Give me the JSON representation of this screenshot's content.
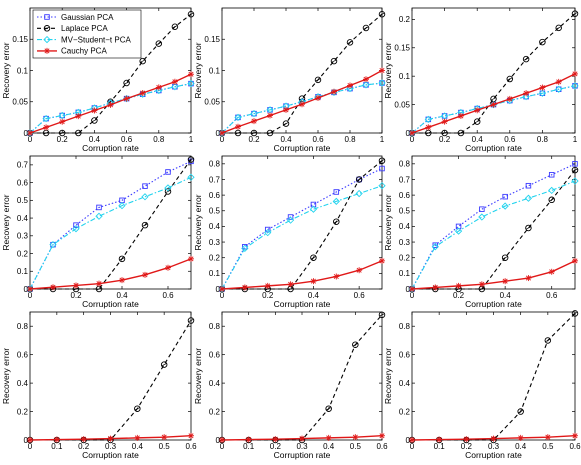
{
  "colors": {
    "gaussian": "#3a3aff",
    "laplace": "#000000",
    "student": "#22d3ee",
    "cauchy": "#e01818"
  },
  "legend": {
    "entries": [
      "Gaussian PCA",
      "Laplace PCA",
      "MV−Student−t PCA",
      "Cauchy PCA"
    ],
    "placement": "top-left of first panel"
  },
  "chart_data": [
    {
      "type": "line",
      "row": 0,
      "col": 0,
      "xlabel": "Corruption rate",
      "ylabel": "Recovery error",
      "xlim": [
        0,
        1
      ],
      "ylim": [
        0,
        0.2
      ],
      "xticks": [
        "0",
        "0.2",
        "0.4",
        "0.6",
        "0.8",
        "1"
      ],
      "yticks": [
        "0",
        "0.05",
        "0.1",
        "0.15"
      ],
      "x": [
        0,
        0.1,
        0.2,
        0.3,
        0.4,
        0.5,
        0.6,
        0.7,
        0.8,
        0.9,
        1.0
      ],
      "series": [
        {
          "name": "Gaussian PCA",
          "values": [
            0,
            0.023,
            0.028,
            0.033,
            0.04,
            0.048,
            0.055,
            0.062,
            0.068,
            0.074,
            0.079
          ]
        },
        {
          "name": "Laplace PCA",
          "values": [
            0,
            0,
            0,
            0,
            0.02,
            0.05,
            0.08,
            0.115,
            0.143,
            0.17,
            0.19
          ]
        },
        {
          "name": "MV−Student−t PCA",
          "values": [
            0,
            0.023,
            0.028,
            0.033,
            0.04,
            0.048,
            0.055,
            0.062,
            0.068,
            0.074,
            0.079
          ]
        },
        {
          "name": "Cauchy PCA",
          "values": [
            0,
            0.009,
            0.018,
            0.027,
            0.036,
            0.045,
            0.055,
            0.064,
            0.073,
            0.082,
            0.094
          ]
        }
      ]
    },
    {
      "type": "line",
      "row": 0,
      "col": 1,
      "xlabel": "Corruption rate",
      "ylabel": "Recovery error",
      "xlim": [
        0,
        1
      ],
      "ylim": [
        0,
        0.2
      ],
      "xticks": [
        "0",
        "0.2",
        "0.4",
        "0.6",
        "0.8",
        "1"
      ],
      "yticks": [
        "0",
        "0.05",
        "0.1",
        "0.15"
      ],
      "x": [
        0,
        0.1,
        0.2,
        0.3,
        0.4,
        0.5,
        0.6,
        0.7,
        0.8,
        0.9,
        1.0
      ],
      "series": [
        {
          "name": "Gaussian PCA",
          "values": [
            0,
            0.025,
            0.031,
            0.037,
            0.043,
            0.05,
            0.058,
            0.065,
            0.071,
            0.077,
            0.08
          ]
        },
        {
          "name": "Laplace PCA",
          "values": [
            0,
            0,
            0,
            0,
            0.015,
            0.055,
            0.085,
            0.115,
            0.145,
            0.168,
            0.19
          ]
        },
        {
          "name": "MV−Student−t PCA",
          "values": [
            0,
            0.025,
            0.031,
            0.037,
            0.043,
            0.05,
            0.058,
            0.065,
            0.071,
            0.077,
            0.08
          ]
        },
        {
          "name": "Cauchy PCA",
          "values": [
            0,
            0.01,
            0.019,
            0.028,
            0.037,
            0.046,
            0.056,
            0.066,
            0.076,
            0.086,
            0.1
          ]
        }
      ]
    },
    {
      "type": "line",
      "row": 0,
      "col": 2,
      "xlabel": "Corruption rate",
      "ylabel": "Recovery error",
      "xlim": [
        0,
        1
      ],
      "ylim": [
        0,
        0.22
      ],
      "xticks": [
        "0",
        "0.2",
        "0.4",
        "0.6",
        "0.8",
        "1"
      ],
      "yticks": [
        "0",
        "0.05",
        "0.1",
        "0.15",
        "0.2"
      ],
      "x": [
        0,
        0.1,
        0.2,
        0.3,
        0.4,
        0.5,
        0.6,
        0.7,
        0.8,
        0.9,
        1.0
      ],
      "series": [
        {
          "name": "Gaussian PCA",
          "values": [
            0,
            0.024,
            0.03,
            0.036,
            0.043,
            0.05,
            0.057,
            0.064,
            0.07,
            0.077,
            0.083
          ]
        },
        {
          "name": "Laplace PCA",
          "values": [
            0,
            0,
            0,
            0,
            0.02,
            0.06,
            0.095,
            0.13,
            0.16,
            0.185,
            0.21
          ]
        },
        {
          "name": "MV−Student−t PCA",
          "values": [
            0,
            0.024,
            0.03,
            0.036,
            0.043,
            0.05,
            0.057,
            0.064,
            0.07,
            0.077,
            0.083
          ]
        },
        {
          "name": "Cauchy PCA",
          "values": [
            0,
            0.01,
            0.02,
            0.03,
            0.04,
            0.05,
            0.06,
            0.07,
            0.08,
            0.09,
            0.104
          ]
        }
      ]
    },
    {
      "type": "line",
      "row": 1,
      "col": 0,
      "xlabel": "Corruption rate",
      "ylabel": "Recovery error",
      "xlim": [
        0,
        0.7
      ],
      "ylim": [
        0,
        0.75
      ],
      "xticks": [
        "0",
        "0.2",
        "0.4",
        "0.6"
      ],
      "yticks": [
        "0",
        "0.1",
        "0.2",
        "0.3",
        "0.4",
        "0.5",
        "0.6",
        "0.7"
      ],
      "x": [
        0,
        0.1,
        0.2,
        0.3,
        0.4,
        0.5,
        0.6,
        0.7
      ],
      "series": [
        {
          "name": "Gaussian PCA",
          "values": [
            0,
            0.25,
            0.36,
            0.46,
            0.5,
            0.58,
            0.66,
            0.72
          ]
        },
        {
          "name": "Laplace PCA",
          "values": [
            0,
            0,
            0,
            0,
            0.17,
            0.36,
            0.55,
            0.73
          ]
        },
        {
          "name": "MV−Student−t PCA",
          "values": [
            0,
            0.25,
            0.34,
            0.41,
            0.47,
            0.52,
            0.57,
            0.63
          ]
        },
        {
          "name": "Cauchy PCA",
          "values": [
            0,
            0.01,
            0.02,
            0.03,
            0.05,
            0.08,
            0.12,
            0.17
          ]
        }
      ]
    },
    {
      "type": "line",
      "row": 1,
      "col": 1,
      "xlabel": "Corruption rate",
      "ylabel": "Recovery error",
      "xlim": [
        0,
        0.7
      ],
      "ylim": [
        0,
        0.85
      ],
      "xticks": [
        "0",
        "0.2",
        "0.4",
        "0.6"
      ],
      "yticks": [
        "0",
        "0.1",
        "0.2",
        "0.3",
        "0.4",
        "0.5",
        "0.6",
        "0.7",
        "0.8"
      ],
      "x": [
        0,
        0.1,
        0.2,
        0.3,
        0.4,
        0.5,
        0.6,
        0.7
      ],
      "series": [
        {
          "name": "Gaussian PCA",
          "values": [
            0,
            0.27,
            0.38,
            0.46,
            0.54,
            0.62,
            0.7,
            0.77
          ]
        },
        {
          "name": "Laplace PCA",
          "values": [
            0,
            0,
            0,
            0,
            0.2,
            0.43,
            0.7,
            0.82
          ]
        },
        {
          "name": "MV−Student−t PCA",
          "values": [
            0,
            0.26,
            0.36,
            0.44,
            0.51,
            0.56,
            0.61,
            0.66
          ]
        },
        {
          "name": "Cauchy PCA",
          "values": [
            0,
            0.01,
            0.02,
            0.03,
            0.05,
            0.08,
            0.12,
            0.18
          ]
        }
      ]
    },
    {
      "type": "line",
      "row": 1,
      "col": 2,
      "xlabel": "Corruption rate",
      "ylabel": "Recovery error",
      "xlim": [
        0,
        0.7
      ],
      "ylim": [
        0,
        0.85
      ],
      "xticks": [
        "0",
        "0.2",
        "0.4",
        "0.6"
      ],
      "yticks": [
        "0",
        "0.1",
        "0.2",
        "0.3",
        "0.4",
        "0.5",
        "0.6",
        "0.7",
        "0.8"
      ],
      "x": [
        0,
        0.1,
        0.2,
        0.3,
        0.4,
        0.5,
        0.6,
        0.7
      ],
      "series": [
        {
          "name": "Gaussian PCA",
          "values": [
            0,
            0.28,
            0.4,
            0.51,
            0.59,
            0.66,
            0.73,
            0.8
          ]
        },
        {
          "name": "Laplace PCA",
          "values": [
            0,
            0,
            0,
            0,
            0.2,
            0.39,
            0.57,
            0.76
          ]
        },
        {
          "name": "MV−Student−t PCA",
          "values": [
            0,
            0.27,
            0.37,
            0.46,
            0.53,
            0.58,
            0.63,
            0.69
          ]
        },
        {
          "name": "Cauchy PCA",
          "values": [
            0,
            0.01,
            0.02,
            0.03,
            0.05,
            0.07,
            0.11,
            0.18
          ]
        }
      ]
    },
    {
      "type": "line",
      "row": 2,
      "col": 0,
      "xlabel": "Corruption rate",
      "ylabel": "Recovery error",
      "xlim": [
        0,
        0.6
      ],
      "ylim": [
        0,
        0.9
      ],
      "xticks": [
        "0",
        "0.1",
        "0.2",
        "0.3",
        "0.4",
        "0.5",
        "0.6"
      ],
      "yticks": [
        "0",
        "0.2",
        "0.4",
        "0.6",
        "0.8"
      ],
      "x": [
        0,
        0.1,
        0.2,
        0.3,
        0.4,
        0.5,
        0.6
      ],
      "series": [
        {
          "name": "Laplace PCA",
          "values": [
            0,
            0,
            0,
            0,
            0.22,
            0.53,
            0.84
          ]
        },
        {
          "name": "Cauchy PCA",
          "values": [
            0,
            0.003,
            0.006,
            0.01,
            0.015,
            0.02,
            0.03
          ]
        }
      ]
    },
    {
      "type": "line",
      "row": 2,
      "col": 1,
      "xlabel": "Corruption rate",
      "ylabel": "Recovery error",
      "xlim": [
        0,
        0.6
      ],
      "ylim": [
        0,
        0.9
      ],
      "xticks": [
        "0",
        "0.1",
        "0.2",
        "0.3",
        "0.4",
        "0.5",
        "0.6"
      ],
      "yticks": [
        "0",
        "0.2",
        "0.4",
        "0.6",
        "0.8"
      ],
      "x": [
        0,
        0.1,
        0.2,
        0.3,
        0.4,
        0.5,
        0.6
      ],
      "series": [
        {
          "name": "Laplace PCA",
          "values": [
            0,
            0,
            0,
            0,
            0.22,
            0.67,
            0.88
          ]
        },
        {
          "name": "Cauchy PCA",
          "values": [
            0,
            0.003,
            0.006,
            0.01,
            0.015,
            0.02,
            0.03
          ]
        }
      ]
    },
    {
      "type": "line",
      "row": 2,
      "col": 2,
      "xlabel": "Corruption rate",
      "ylabel": "Recovery error",
      "xlim": [
        0,
        0.6
      ],
      "ylim": [
        0,
        0.9
      ],
      "xticks": [
        "0",
        "0.1",
        "0.2",
        "0.3",
        "0.4",
        "0.5",
        "0.6"
      ],
      "yticks": [
        "0",
        "0.2",
        "0.4",
        "0.6",
        "0.8"
      ],
      "x": [
        0,
        0.1,
        0.2,
        0.3,
        0.4,
        0.5,
        0.6
      ],
      "series": [
        {
          "name": "Laplace PCA",
          "values": [
            0,
            0,
            0,
            0,
            0.2,
            0.7,
            0.89
          ]
        },
        {
          "name": "Cauchy PCA",
          "values": [
            0,
            0.003,
            0.006,
            0.01,
            0.015,
            0.02,
            0.03
          ]
        }
      ]
    }
  ]
}
